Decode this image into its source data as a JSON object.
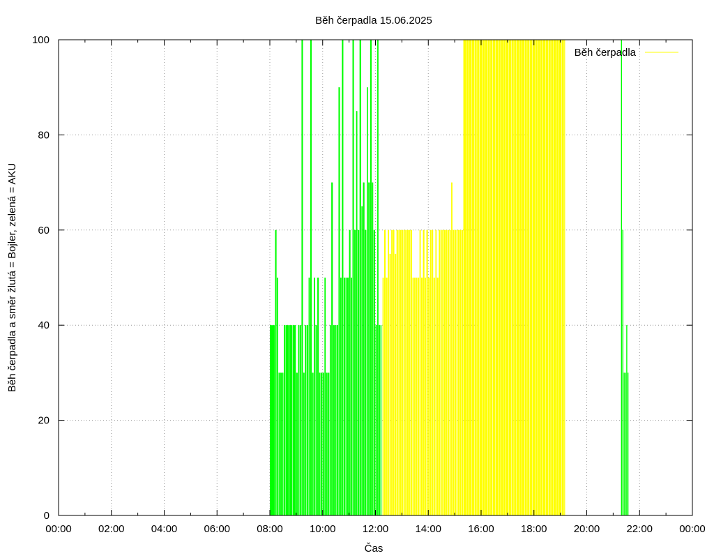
{
  "chart_data": {
    "type": "bar",
    "title": "Běh čerpadla 15.06.2025",
    "xlabel": "Čas",
    "ylabel": "Běh čerpadla a směr žlutá = Bojler, zelená = AKU",
    "ylim": [
      0,
      100
    ],
    "yticks": [
      "0",
      "20",
      "40",
      "60",
      "80",
      "100"
    ],
    "xlim_hours": [
      0,
      24
    ],
    "xticks": [
      "00:00",
      "02:00",
      "04:00",
      "06:00",
      "08:00",
      "10:00",
      "12:00",
      "14:00",
      "16:00",
      "18:00",
      "20:00",
      "22:00",
      "00:00"
    ],
    "grid": true,
    "legend": {
      "position": "top-right",
      "entries": [
        "Běh čerpadla"
      ]
    },
    "colors": {
      "AKU": "#00ff00",
      "Bojler": "#ffff00",
      "grid": "#999999",
      "axis": "#000000"
    },
    "series": [
      {
        "name": "Běh čerpadla",
        "color": "#00ff00",
        "x_hours": [
          8.0,
          8.2,
          8.27,
          8.33,
          8.4,
          8.47,
          8.53,
          8.6,
          8.73,
          8.87,
          9.0,
          9.07,
          9.13,
          9.2,
          9.27,
          9.33,
          9.4,
          9.47,
          9.53,
          9.6,
          9.67,
          9.73,
          9.8,
          9.87,
          9.93,
          10.0,
          10.07,
          10.13,
          10.2,
          10.27,
          10.33,
          10.4,
          10.47,
          10.53,
          10.6,
          10.67,
          10.73,
          10.8,
          10.87,
          10.93,
          11.0,
          11.07,
          11.13,
          11.2,
          11.27,
          11.33,
          11.4,
          11.47,
          11.53,
          11.6,
          11.67,
          11.73,
          11.8,
          11.87,
          11.93,
          12.0,
          12.07,
          12.13,
          12.2,
          21.3,
          21.35,
          21.4,
          21.45,
          21.5,
          21.55
        ],
        "values": [
          40,
          60,
          50,
          30,
          30,
          30,
          40,
          40,
          40,
          40,
          30,
          40,
          40,
          100,
          30,
          40,
          40,
          50,
          100,
          30,
          50,
          40,
          50,
          30,
          30,
          30,
          50,
          30,
          30,
          40,
          70,
          40,
          40,
          40,
          90,
          50,
          100,
          50,
          50,
          50,
          60,
          50,
          100,
          60,
          85,
          60,
          100,
          65,
          70,
          60,
          90,
          70,
          100,
          70,
          60,
          40,
          100,
          40,
          40,
          100,
          60,
          30,
          30,
          40,
          30
        ]
      },
      {
        "name": "Běh čerpadla",
        "color": "#ffff00",
        "x_hours": [
          12.27,
          12.33,
          12.4,
          12.47,
          12.53,
          12.6,
          12.67,
          12.73,
          12.8,
          12.87,
          12.93,
          13.0,
          13.07,
          13.13,
          13.2,
          13.27,
          13.33,
          13.4,
          13.47,
          13.53,
          13.6,
          13.67,
          13.73,
          13.8,
          13.87,
          13.93,
          14.0,
          14.07,
          14.13,
          14.2,
          14.27,
          14.33,
          14.4,
          14.47,
          14.53,
          14.6,
          14.67,
          14.73,
          14.8,
          14.87,
          14.93,
          15.0,
          15.07,
          15.13,
          15.2,
          15.25,
          15.33,
          15.45,
          15.55,
          15.65,
          15.75,
          15.85,
          15.95,
          16.05,
          16.15,
          16.25,
          16.35,
          16.45,
          16.55,
          16.65,
          16.75,
          16.85,
          16.95,
          17.05,
          17.15,
          17.25,
          17.35,
          17.45,
          17.55,
          17.65,
          17.75,
          17.85,
          17.95,
          18.05,
          18.15,
          18.25,
          18.35,
          18.45,
          18.55,
          18.65,
          18.75,
          18.85,
          18.95,
          19.05,
          19.15
        ],
        "values": [
          50,
          60,
          50,
          60,
          55,
          60,
          60,
          55,
          60,
          60,
          60,
          60,
          60,
          60,
          60,
          60,
          60,
          50,
          50,
          50,
          50,
          60,
          50,
          60,
          50,
          60,
          50,
          60,
          60,
          50,
          60,
          50,
          60,
          60,
          60,
          60,
          60,
          60,
          60,
          70,
          60,
          60,
          60,
          60,
          60,
          60,
          100,
          100,
          100,
          100,
          100,
          100,
          100,
          100,
          100,
          100,
          100,
          100,
          100,
          100,
          100,
          100,
          100,
          100,
          100,
          100,
          100,
          100,
          100,
          100,
          100,
          100,
          100,
          100,
          100,
          100,
          100,
          100,
          100,
          100,
          100,
          100,
          100,
          100,
          100
        ]
      }
    ]
  }
}
